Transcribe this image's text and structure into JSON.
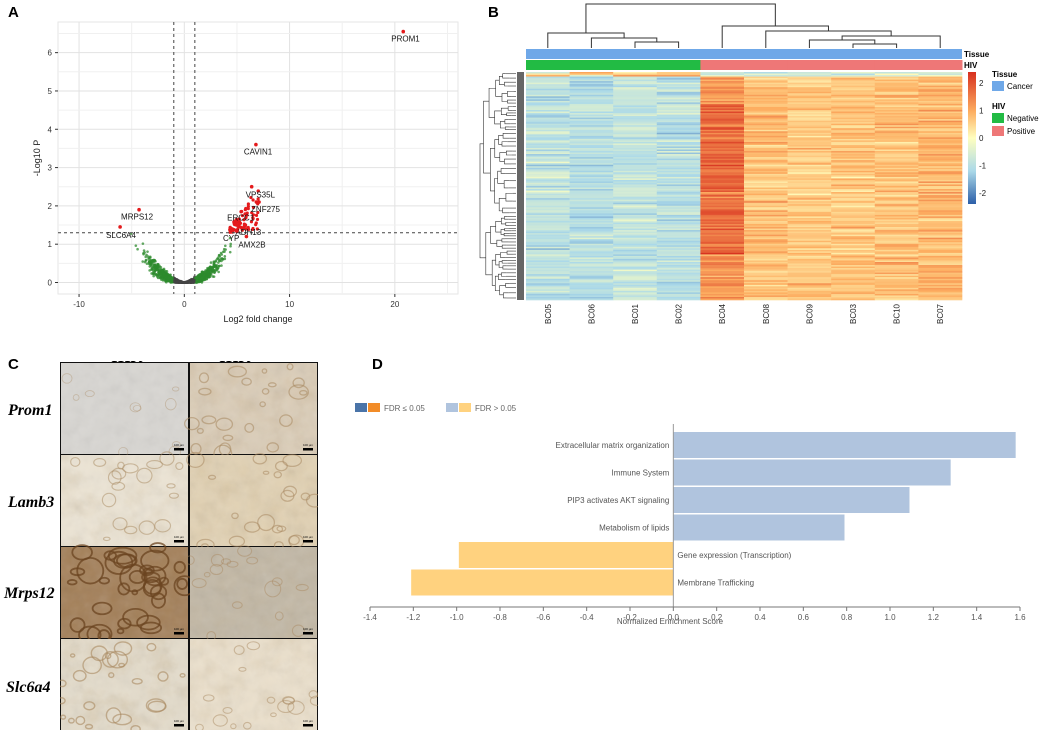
{
  "panels": {
    "a": "A",
    "b": "B",
    "c": "C",
    "d": "D"
  },
  "colors": {
    "significant": "#e41a1c",
    "nonsignificant": "#2e8b2e",
    "tissue_cancer": "#6fa8e8",
    "hiv_negative": "#22bb44",
    "hiv_positive": "#ee7777",
    "fdr_low_blue": "#4a74a8",
    "fdr_low_orange": "#f28c28",
    "fdr_high_blue": "#b0c4de",
    "fdr_high_orange": "#ffd27f"
  },
  "chart_data": [
    {
      "type": "scatter",
      "panel": "A",
      "title": "",
      "xlabel": "Log2 fold change",
      "ylabel": "-Log10 P",
      "xlim": [
        -12,
        26
      ],
      "ylim": [
        -0.3,
        6.8
      ],
      "x_ticks": [
        "-10",
        "0",
        "10",
        "20"
      ],
      "y_ticks": [
        "0",
        "1",
        "2",
        "3",
        "4",
        "5",
        "6"
      ],
      "thresholds": {
        "log2fc": [
          -1,
          1
        ],
        "neglog10p": 1.3
      },
      "labeled_points": [
        {
          "label": "PROM1",
          "x": 20.8,
          "y": 6.55
        },
        {
          "label": "CAVIN1",
          "x": 6.8,
          "y": 3.6
        },
        {
          "label": "VPS35L",
          "x": 6.4,
          "y": 2.5
        },
        {
          "label": "ZNF275",
          "x": 7.1,
          "y": 2.1
        },
        {
          "label": "ERCC1",
          "x": 5.4,
          "y": 1.85
        },
        {
          "label": "ADH13",
          "x": 5.8,
          "y": 1.5
        },
        {
          "label": "CYP",
          "x": 5.0,
          "y": 1.35
        },
        {
          "label": "AMX2B",
          "x": 5.9,
          "y": 1.2
        },
        {
          "label": "MRPS12",
          "x": -4.3,
          "y": 1.9
        },
        {
          "label": "SLC6A4",
          "x": -6.1,
          "y": 1.45
        }
      ]
    },
    {
      "type": "heatmap",
      "panel": "B",
      "columns": [
        "BC05",
        "BC06",
        "BC01",
        "BC02",
        "BC04",
        "BC08",
        "BC09",
        "BC03",
        "BC10",
        "BC07"
      ],
      "annotation_tracks": [
        "Tissue",
        "HIV"
      ],
      "tissue": [
        "Cancer",
        "Cancer",
        "Cancer",
        "Cancer",
        "Cancer",
        "Cancer",
        "Cancer",
        "Cancer",
        "Cancer",
        "Cancer"
      ],
      "hiv": [
        "Negative",
        "Negative",
        "Negative",
        "Negative",
        "Positive",
        "Positive",
        "Positive",
        "Positive",
        "Positive",
        "Positive"
      ],
      "legend": {
        "tissue_title": "Tissue",
        "tissue_items": [
          "Cancer"
        ],
        "hiv_title": "HIV",
        "hiv_items": [
          "Negative",
          "Positive"
        ],
        "scale_ticks": [
          "2",
          "1",
          "0",
          "-1",
          "-2"
        ],
        "scale_range": [
          -2.4,
          2.4
        ]
      },
      "column_mean_levels": [
        -0.9,
        -1.0,
        -0.85,
        -0.95,
        1.3,
        0.9,
        0.7,
        0.75,
        0.85,
        0.95
      ]
    },
    {
      "type": "bar",
      "panel": "D",
      "orientation": "horizontal",
      "categories": [
        "Extracellular matrix organization",
        "Immune System",
        "PIP3 activates AKT signaling",
        "Metabolism of lipids",
        "Gene expression (Transcription)",
        "Membrane Trafficking"
      ],
      "values": [
        1.58,
        1.28,
        1.09,
        0.79,
        -0.99,
        -1.21
      ],
      "xlabel": "Normalized Enrichment Score",
      "xlim": [
        -1.4,
        1.6
      ],
      "x_ticks": [
        "-1.4",
        "-1.2",
        "-1.0",
        "-0.8",
        "-0.6",
        "-0.4",
        "-0.2",
        "0.0",
        "0.2",
        "0.4",
        "0.6",
        "0.8",
        "1.0",
        "1.2",
        "1.4",
        "1.6"
      ],
      "legend": [
        "FDR ≤ 0.05",
        "FDR > 0.05"
      ]
    }
  ],
  "ihc": {
    "column_headers": [
      "HIV-",
      "HIV+"
    ],
    "row_labels": [
      "Prom1",
      "Lamb3",
      "Mrps12",
      "Slc6a4"
    ],
    "scale_bar_label": "100 µm"
  }
}
